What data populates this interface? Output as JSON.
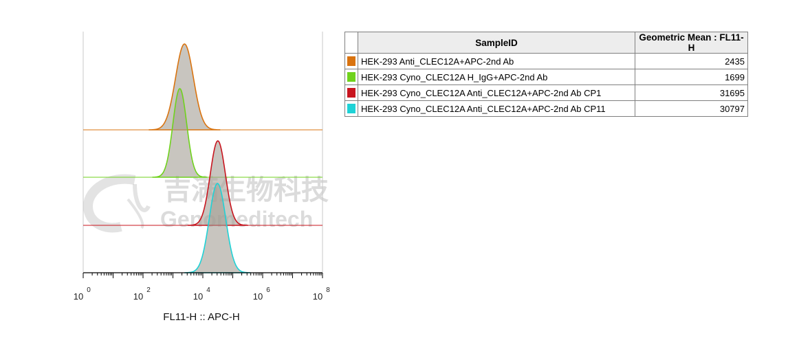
{
  "chart_data": {
    "type": "histogram-overlay",
    "xlabel": "FL11-H :: APC-H",
    "x_scale": "log",
    "xlim": [
      1,
      100000000
    ],
    "x_ticks": [
      {
        "base": "10",
        "exp": "0"
      },
      {
        "base": "10",
        "exp": "2"
      },
      {
        "base": "10",
        "exp": "4"
      },
      {
        "base": "10",
        "exp": "6"
      },
      {
        "base": "10",
        "exp": "8"
      }
    ],
    "series": [
      {
        "name": "HEK-293 Anti_CLEC12A+APC-2nd Ab",
        "geometric_mean": 2435,
        "color": "#d9730f"
      },
      {
        "name": "HEK-293 Cyno_CLEC12A H_IgG+APC-2nd Ab",
        "geometric_mean": 1699,
        "color": "#6fd21c"
      },
      {
        "name": "HEK-293 Cyno_CLEC12A Anti_CLEC12A+APC-2nd Ab CP1",
        "geometric_mean": 31695,
        "color": "#c8141e"
      },
      {
        "name": "HEK-293 Cyno_CLEC12A Anti_CLEC12A+APC-2nd Ab CP11",
        "geometric_mean": 30797,
        "color": "#1ed2d6"
      }
    ]
  },
  "table": {
    "header_sample": "SampleID",
    "header_value": "Geometric Mean : FL11-H"
  },
  "watermark": {
    "cn": "吉满生物科技",
    "en": "Genomeditech"
  }
}
